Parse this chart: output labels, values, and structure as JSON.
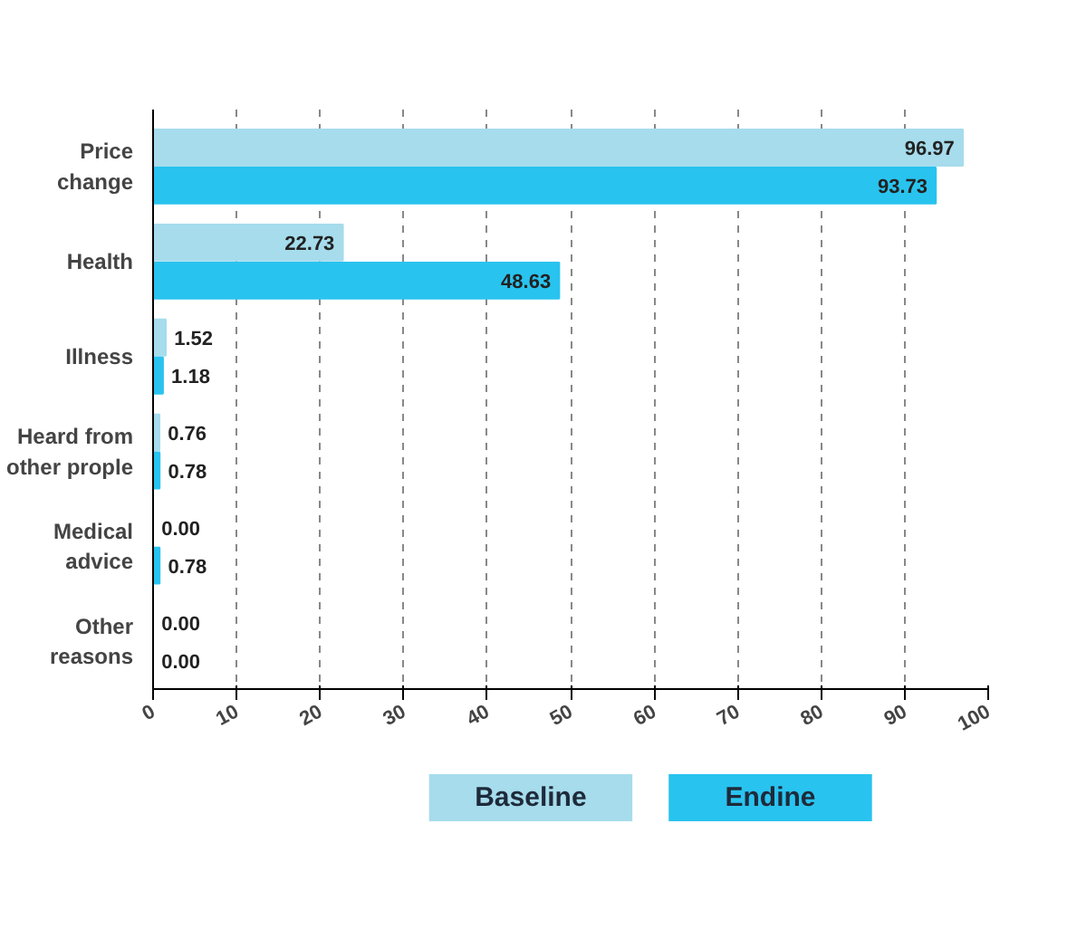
{
  "chart_data": {
    "type": "bar",
    "orientation": "horizontal",
    "categories": [
      "Price\nchange",
      "Health",
      "Illness",
      "Heard from\nother prople",
      "Medical\nadvice",
      "Other\nreasons"
    ],
    "series": [
      {
        "name": "Baseline",
        "color": "#a6dcec",
        "values": [
          96.97,
          22.73,
          1.52,
          0.76,
          0.0,
          0.0
        ],
        "value_labels": [
          "96.97",
          "22.73",
          "1.52",
          "0.76",
          "0.00",
          "0.00"
        ]
      },
      {
        "name": "Endine",
        "color": "#29c3ef",
        "values": [
          93.73,
          48.63,
          1.18,
          0.78,
          0.78,
          0.0
        ],
        "value_labels": [
          "93.73",
          "48.63",
          "1.18",
          "0.78",
          "0.78",
          "0.00"
        ]
      }
    ],
    "xlim": [
      0,
      100
    ],
    "xticks": [
      0,
      10,
      20,
      30,
      40,
      50,
      60,
      70,
      80,
      90,
      100
    ],
    "grid": "x",
    "legend": "bottom"
  }
}
